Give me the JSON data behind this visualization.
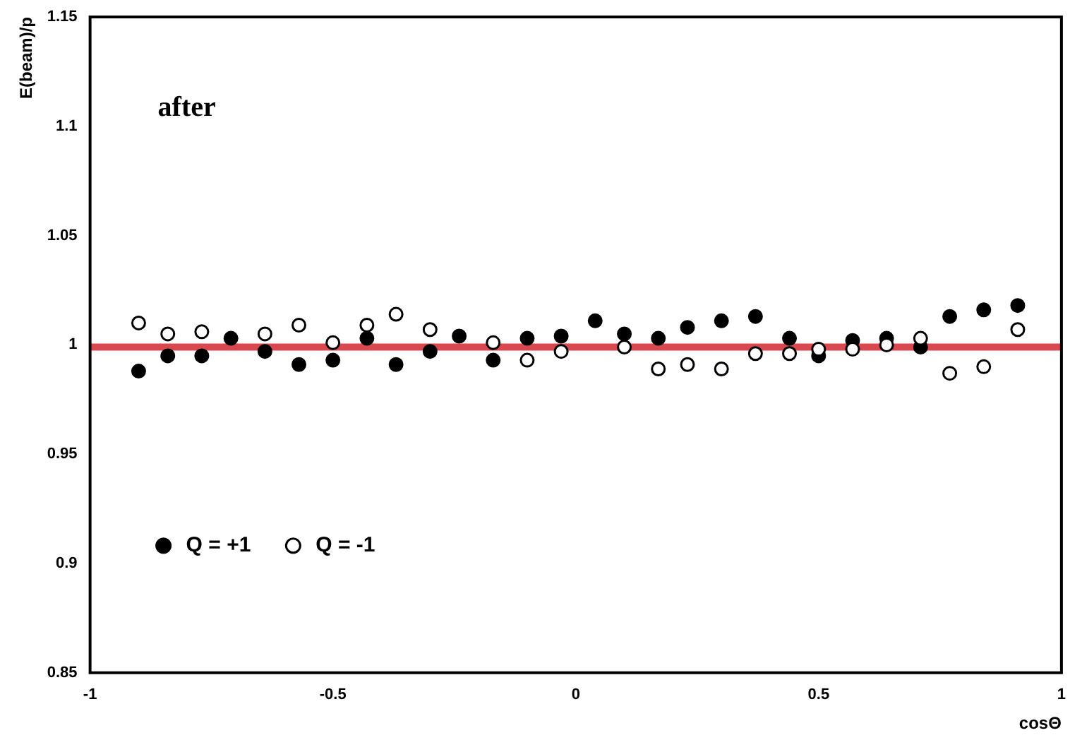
{
  "chart_data": {
    "type": "scatter",
    "xlabel": "cosΘ",
    "ylabel": "E(beam)/p",
    "annotations": [
      "after"
    ],
    "x": [
      -0.9,
      -0.84,
      -0.77,
      -0.71,
      -0.64,
      -0.57,
      -0.5,
      -0.43,
      -0.37,
      -0.3,
      -0.24,
      -0.17,
      -0.1,
      -0.03,
      0.04,
      0.1,
      0.17,
      0.23,
      0.3,
      0.37,
      0.44,
      0.5,
      0.57,
      0.64,
      0.71,
      0.77,
      0.84,
      0.91
    ],
    "series": [
      {
        "name": "Q = +1",
        "color": "#000000",
        "values": [
          0.988,
          0.995,
          0.995,
          1.003,
          0.997,
          0.991,
          0.993,
          1.003,
          0.991,
          0.997,
          1.004,
          0.993,
          1.003,
          1.004,
          1.011,
          1.005,
          1.003,
          1.008,
          1.011,
          1.013,
          1.003,
          0.995,
          1.002,
          1.003,
          0.999,
          1.013,
          1.016,
          1.018
        ]
      },
      {
        "name": "Q = -1",
        "color": "#ffffff",
        "values": [
          1.01,
          1.005,
          1.006,
          null,
          1.005,
          1.009,
          1.001,
          1.009,
          1.014,
          1.007,
          null,
          1.001,
          0.993,
          0.997,
          null,
          0.999,
          0.989,
          0.991,
          0.989,
          0.996,
          0.996,
          0.998,
          0.998,
          1.0,
          1.003,
          0.987,
          0.99,
          1.007
        ]
      }
    ],
    "xlim": [
      -1,
      1
    ],
    "xticks": [
      -1,
      -0.5,
      0,
      0.5,
      1
    ],
    "ylim": [
      0.85,
      1.15
    ],
    "yticks": [
      0.85,
      0.9,
      0.95,
      1,
      1.05,
      1.1,
      1.15
    ],
    "ref_lines": [
      {
        "axis": "y",
        "value": 0.999,
        "color": "#d9474f"
      }
    ],
    "legend": "bottom left",
    "marker": "circle",
    "grid": false
  }
}
